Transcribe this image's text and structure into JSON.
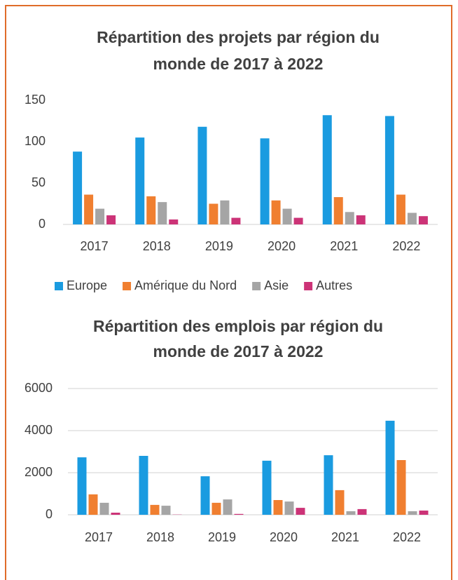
{
  "chart_data": [
    {
      "type": "bar",
      "title": [
        "Répartition des projets par région du",
        "monde de 2017 à 2022"
      ],
      "categories": [
        "2017",
        "2018",
        "2019",
        "2020",
        "2021",
        "2022"
      ],
      "ylim": [
        0,
        150
      ],
      "yticks": [
        0,
        50,
        100,
        150
      ],
      "grid": false,
      "legend": "bottom",
      "series": [
        {
          "name": "Europe",
          "color": "#1a9be0",
          "values": [
            88,
            105,
            118,
            104,
            132,
            131
          ]
        },
        {
          "name": "Amérique du Nord",
          "color": "#f07f30",
          "values": [
            36,
            34,
            25,
            29,
            33,
            36
          ]
        },
        {
          "name": "Asie",
          "color": "#a5a5a5",
          "values": [
            19,
            27,
            29,
            19,
            15,
            14
          ]
        },
        {
          "name": "Autres",
          "color": "#cc3377",
          "values": [
            11,
            6,
            8,
            8,
            11,
            10
          ]
        }
      ]
    },
    {
      "type": "bar",
      "title": [
        "Répartition des emplois par région du",
        "monde de 2017 à 2022"
      ],
      "categories": [
        "2017",
        "2018",
        "2019",
        "2020",
        "2021",
        "2022"
      ],
      "ylim": [
        0,
        6000
      ],
      "yticks": [
        0,
        2000,
        4000,
        6000
      ],
      "grid": true,
      "series": [
        {
          "color": "#1a9be0",
          "values": [
            2730,
            2800,
            1830,
            2570,
            2830,
            4470
          ]
        },
        {
          "color": "#f07f30",
          "values": [
            970,
            470,
            570,
            700,
            1170,
            2600
          ]
        },
        {
          "color": "#a5a5a5",
          "values": [
            570,
            430,
            730,
            630,
            170,
            170
          ]
        },
        {
          "color": "#cc3377",
          "values": [
            100,
            10,
            40,
            330,
            270,
            200
          ]
        }
      ]
    }
  ]
}
